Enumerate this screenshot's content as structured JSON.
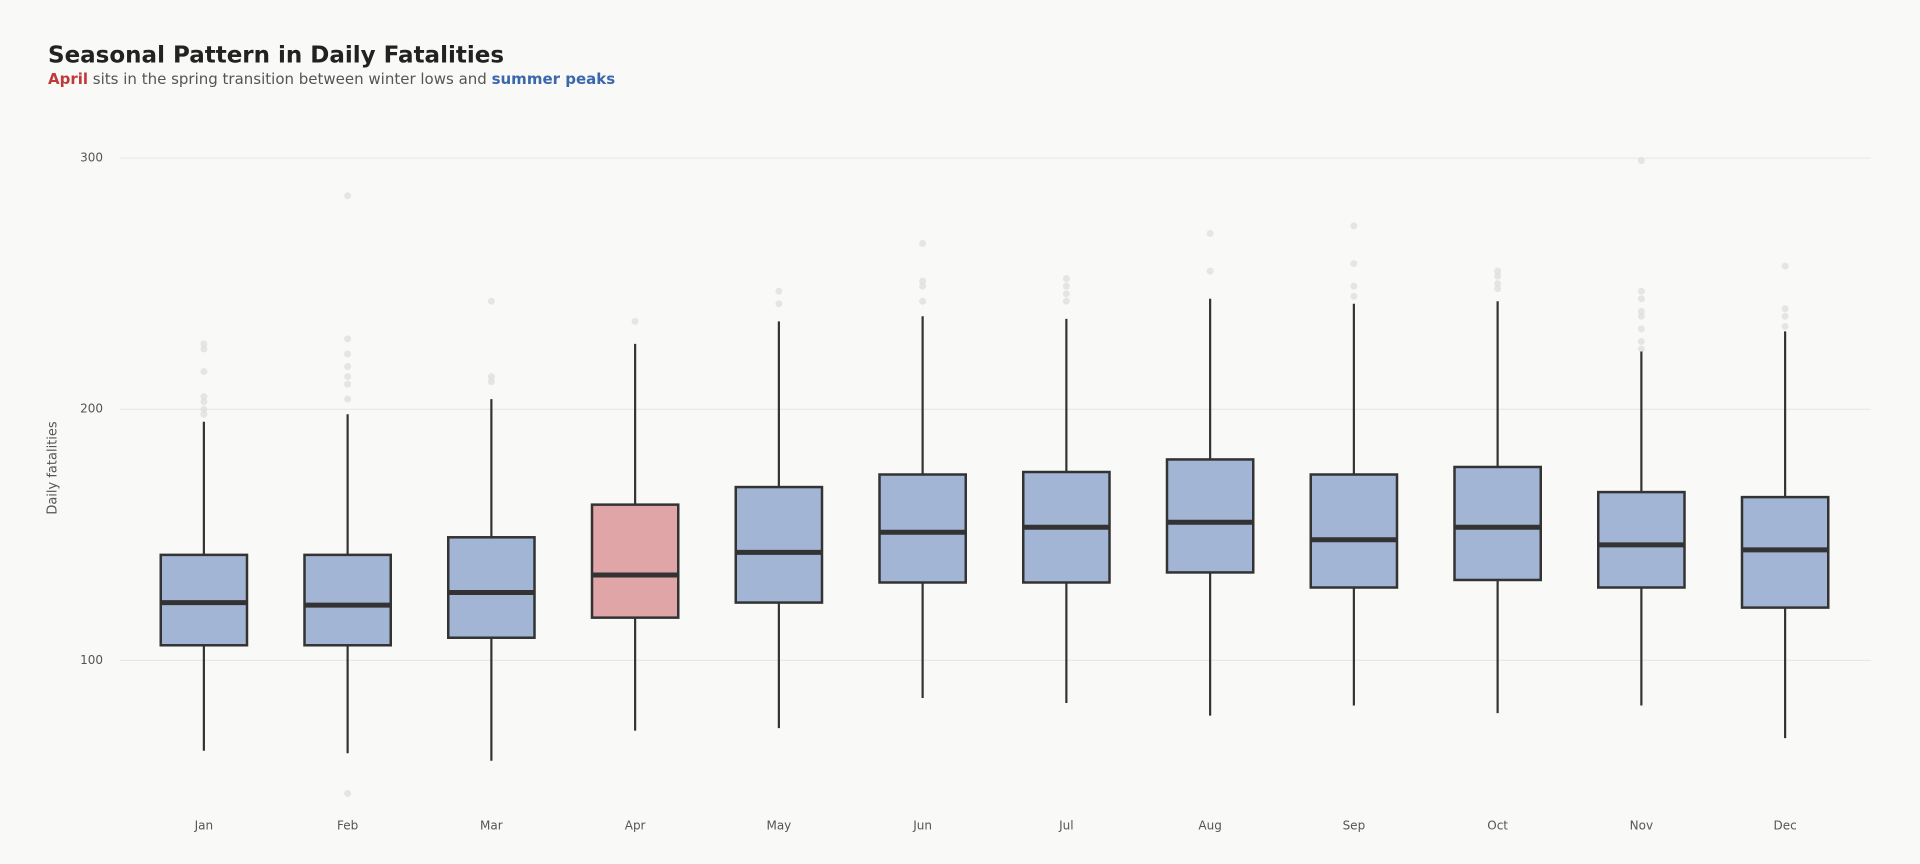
{
  "chart_data": {
    "type": "box",
    "title": "Seasonal Pattern in Daily Fatalities",
    "subtitle": [
      {
        "text": "April",
        "color": "#c0393b"
      },
      {
        "text": " sits in the spring transition between winter lows and "
      },
      {
        "text": "summer peaks",
        "color": "#3b68ad"
      }
    ],
    "ylabel": "Daily fatalities",
    "categories": [
      "Jan",
      "Feb",
      "Mar",
      "Apr",
      "May",
      "Jun",
      "Jul",
      "Aug",
      "Sep",
      "Oct",
      "Nov",
      "Dec"
    ],
    "boxes": [
      {
        "min": 64,
        "q1": 106,
        "median": 123,
        "q3": 142,
        "max": 195,
        "outliers": [
          226,
          224,
          215,
          205,
          203,
          200,
          198
        ]
      },
      {
        "min": 63,
        "q1": 106,
        "median": 122,
        "q3": 142,
        "max": 198,
        "outliers": [
          285,
          228,
          222,
          217,
          213,
          210,
          204,
          47
        ]
      },
      {
        "min": 60,
        "q1": 109,
        "median": 127,
        "q3": 149,
        "max": 204,
        "outliers": [
          243,
          213,
          211
        ]
      },
      {
        "min": 72,
        "q1": 117,
        "median": 134,
        "q3": 162,
        "max": 226,
        "outliers": [
          235
        ]
      },
      {
        "min": 73,
        "q1": 123,
        "median": 143,
        "q3": 169,
        "max": 235,
        "outliers": [
          247,
          242
        ]
      },
      {
        "min": 85,
        "q1": 131,
        "median": 151,
        "q3": 174,
        "max": 237,
        "outliers": [
          266,
          251,
          249,
          243
        ]
      },
      {
        "min": 83,
        "q1": 131,
        "median": 153,
        "q3": 175,
        "max": 236,
        "outliers": [
          252,
          249,
          246,
          243
        ]
      },
      {
        "min": 78,
        "q1": 135,
        "median": 155,
        "q3": 180,
        "max": 244,
        "outliers": [
          270,
          255
        ]
      },
      {
        "min": 82,
        "q1": 129,
        "median": 148,
        "q3": 174,
        "max": 242,
        "outliers": [
          273,
          258,
          249,
          245
        ]
      },
      {
        "min": 79,
        "q1": 132,
        "median": 153,
        "q3": 177,
        "max": 243,
        "outliers": [
          255,
          253,
          250,
          248
        ]
      },
      {
        "min": 82,
        "q1": 129,
        "median": 146,
        "q3": 167,
        "max": 223,
        "outliers": [
          299,
          247,
          244,
          239,
          237,
          232,
          227,
          224
        ]
      },
      {
        "min": 69,
        "q1": 121,
        "median": 144,
        "q3": 165,
        "max": 231,
        "outliers": [
          257,
          240,
          237,
          233
        ]
      }
    ],
    "color": "#a3b5d5",
    "highlight": "Apr",
    "highlight_color": "#e0a5a7",
    "ylim": [
      40,
      310
    ],
    "yticks": [
      100,
      200,
      300
    ],
    "grid": true
  }
}
